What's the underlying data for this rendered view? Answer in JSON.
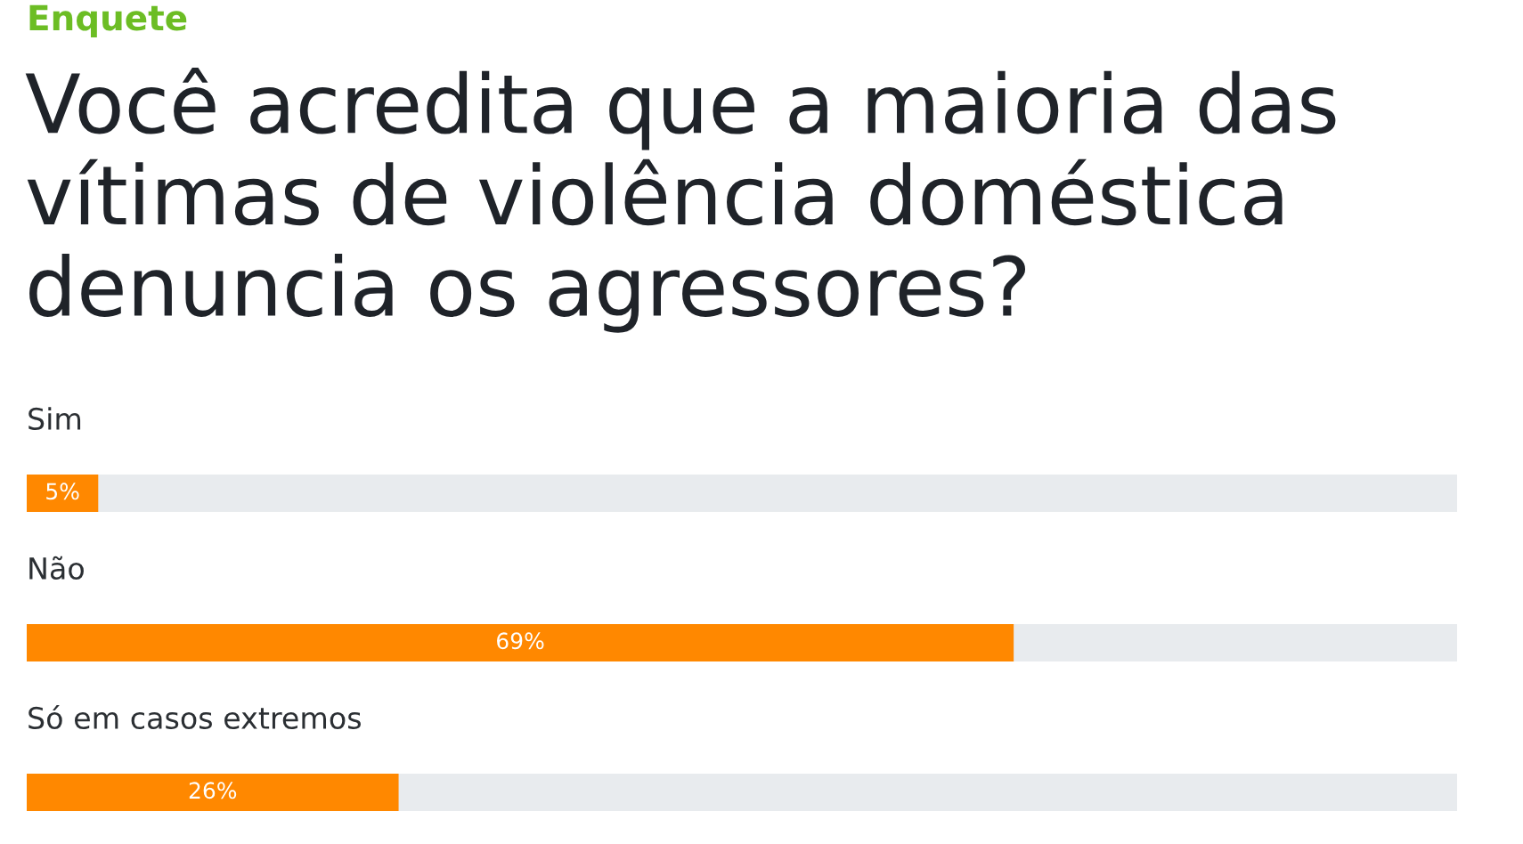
{
  "chart_data": {
    "type": "bar",
    "orientation": "horizontal",
    "subtitle": "Enquete",
    "title": "Você acredita que a maioria das vítimas de violência doméstica denuncia os agressores?",
    "categories": [
      "Sim",
      "Não",
      "Só em casos extremos"
    ],
    "values": [
      5,
      69,
      26
    ],
    "color": "#ff8800",
    "value_labels": [
      "5%",
      "69%",
      "26%"
    ],
    "xlim": [
      0,
      100
    ],
    "tick_labels": "y"
  }
}
